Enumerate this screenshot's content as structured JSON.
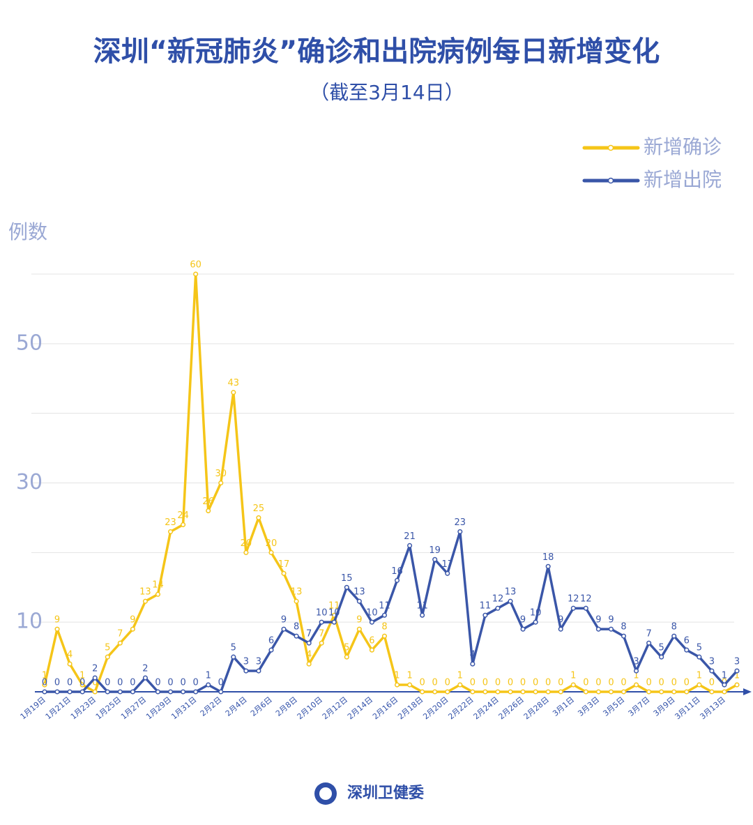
{
  "chart_data": {
    "type": "line",
    "title": "深圳“新冠肺炎”确诊和出院病例每日新增变化",
    "subtitle": "（截至3月14日）",
    "y_label": "例数",
    "footer": "深圳卫健委",
    "categories": [
      "1月19日",
      null,
      "1月21日",
      null,
      "1月23日",
      null,
      "1月25日",
      null,
      "1月27日",
      null,
      "1月29日",
      null,
      "1月31日",
      null,
      "2月2日",
      null,
      "2月4日",
      null,
      "2月6日",
      null,
      "2月8日",
      null,
      "2月10日",
      null,
      "2月12日",
      null,
      "2月14日",
      null,
      "2月16日",
      null,
      "2月18日",
      null,
      "2月20日",
      null,
      "2月22日",
      null,
      "2月24日",
      null,
      "2月26日",
      null,
      "2月28日",
      null,
      "3月1日",
      null,
      "3月3日",
      null,
      "3月5日",
      null,
      "3月7日",
      null,
      "3月9日",
      null,
      "3月11日",
      null,
      "3月13日",
      null
    ],
    "series": [
      {
        "name": "新增确诊",
        "color": "#f5c518",
        "values": [
          1,
          9,
          4,
          1,
          0,
          5,
          7,
          9,
          13,
          14,
          23,
          24,
          60,
          26,
          30,
          43,
          20,
          25,
          20,
          17,
          13,
          4,
          7,
          11,
          5,
          9,
          6,
          8,
          1,
          1,
          0,
          0,
          0,
          1,
          0,
          0,
          0,
          0,
          0,
          0,
          0,
          0,
          1,
          0,
          0,
          0,
          0,
          1,
          0,
          0,
          0,
          0,
          1,
          0,
          0,
          1
        ]
      },
      {
        "name": "新增出院",
        "color": "#3a56a8",
        "values": [
          0,
          0,
          0,
          0,
          2,
          0,
          0,
          0,
          2,
          0,
          0,
          0,
          0,
          1,
          0,
          5,
          3,
          3,
          6,
          9,
          8,
          7,
          10,
          10,
          15,
          13,
          10,
          11,
          16,
          21,
          11,
          19,
          17,
          23,
          4,
          11,
          12,
          13,
          9,
          10,
          18,
          9,
          12,
          12,
          9,
          9,
          8,
          3,
          7,
          5,
          8,
          6,
          5,
          3,
          1,
          3
        ]
      }
    ],
    "ylim": [
      0,
      60
    ],
    "yticks": [
      10,
      30,
      50
    ],
    "grid_ticks": [
      10,
      20,
      30,
      40,
      50,
      60
    ],
    "grid": true,
    "legend": "top-right"
  }
}
